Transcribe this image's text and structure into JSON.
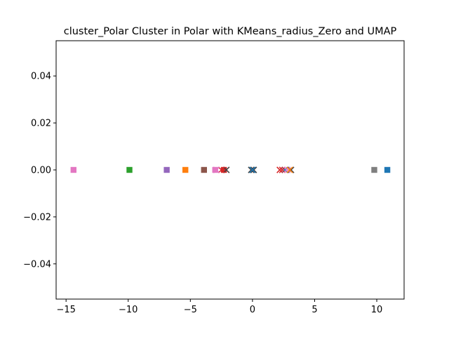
{
  "chart_data": {
    "type": "scatter",
    "title": "cluster_Polar Cluster in Polar with KMeans_radius_Zero and UMAP",
    "xlabel": "",
    "ylabel": "",
    "xlim": [
      -15.8,
      12.2
    ],
    "ylim": [
      -0.055,
      0.055
    ],
    "x_ticks": [
      -15,
      -10,
      -5,
      0,
      5,
      10
    ],
    "x_tick_labels": [
      "−15",
      "−10",
      "−5",
      "0",
      "5",
      "10"
    ],
    "y_ticks": [
      0.04,
      0.02,
      0.0,
      -0.02,
      -0.04
    ],
    "y_tick_labels": [
      "0.04",
      "0.02",
      "0.00",
      "−0.02",
      "−0.04"
    ],
    "grid": false,
    "legend": "none",
    "series": [
      {
        "color": "#1f77b4",
        "marker": "square",
        "x": [
          10.85
        ],
        "y": [
          0
        ]
      },
      {
        "color": "#ff7f0e",
        "marker": "square",
        "x": [
          -5.4
        ],
        "y": [
          0
        ]
      },
      {
        "color": "#2ca02c",
        "marker": "square",
        "x": [
          -9.9
        ],
        "y": [
          0
        ]
      },
      {
        "color": "#d62728",
        "marker": "square",
        "x": [
          -2.3
        ],
        "y": [
          0
        ]
      },
      {
        "color": "#9467bd",
        "marker": "square",
        "x": [
          -6.9
        ],
        "y": [
          0
        ]
      },
      {
        "color": "#8c564b",
        "marker": "square",
        "x": [
          -3.9
        ],
        "y": [
          0
        ]
      },
      {
        "color": "#e377c2",
        "marker": "square",
        "x": [
          -14.4,
          -3.0
        ],
        "y": [
          0,
          0
        ]
      },
      {
        "color": "#7f7f7f",
        "marker": "square",
        "x": [
          9.8
        ],
        "y": [
          0
        ]
      },
      {
        "color": "#444444",
        "marker": "x",
        "x": [
          -2.1,
          -0.1,
          0.1,
          3.1
        ],
        "y": [
          0,
          0,
          0,
          0
        ]
      },
      {
        "color": "#1f77b4",
        "marker": "x",
        "x": [
          0.0,
          2.6
        ],
        "y": [
          0,
          0
        ]
      },
      {
        "color": "#d62728",
        "marker": "x",
        "x": [
          -2.5,
          2.2,
          2.4
        ],
        "y": [
          0,
          0,
          0
        ]
      },
      {
        "color": "#e377c2",
        "marker": "x",
        "x": [
          -2.9,
          2.8
        ],
        "y": [
          0,
          0
        ]
      },
      {
        "color": "#ff7f0e",
        "marker": "x",
        "x": [
          3.0
        ],
        "y": [
          0
        ]
      }
    ]
  }
}
